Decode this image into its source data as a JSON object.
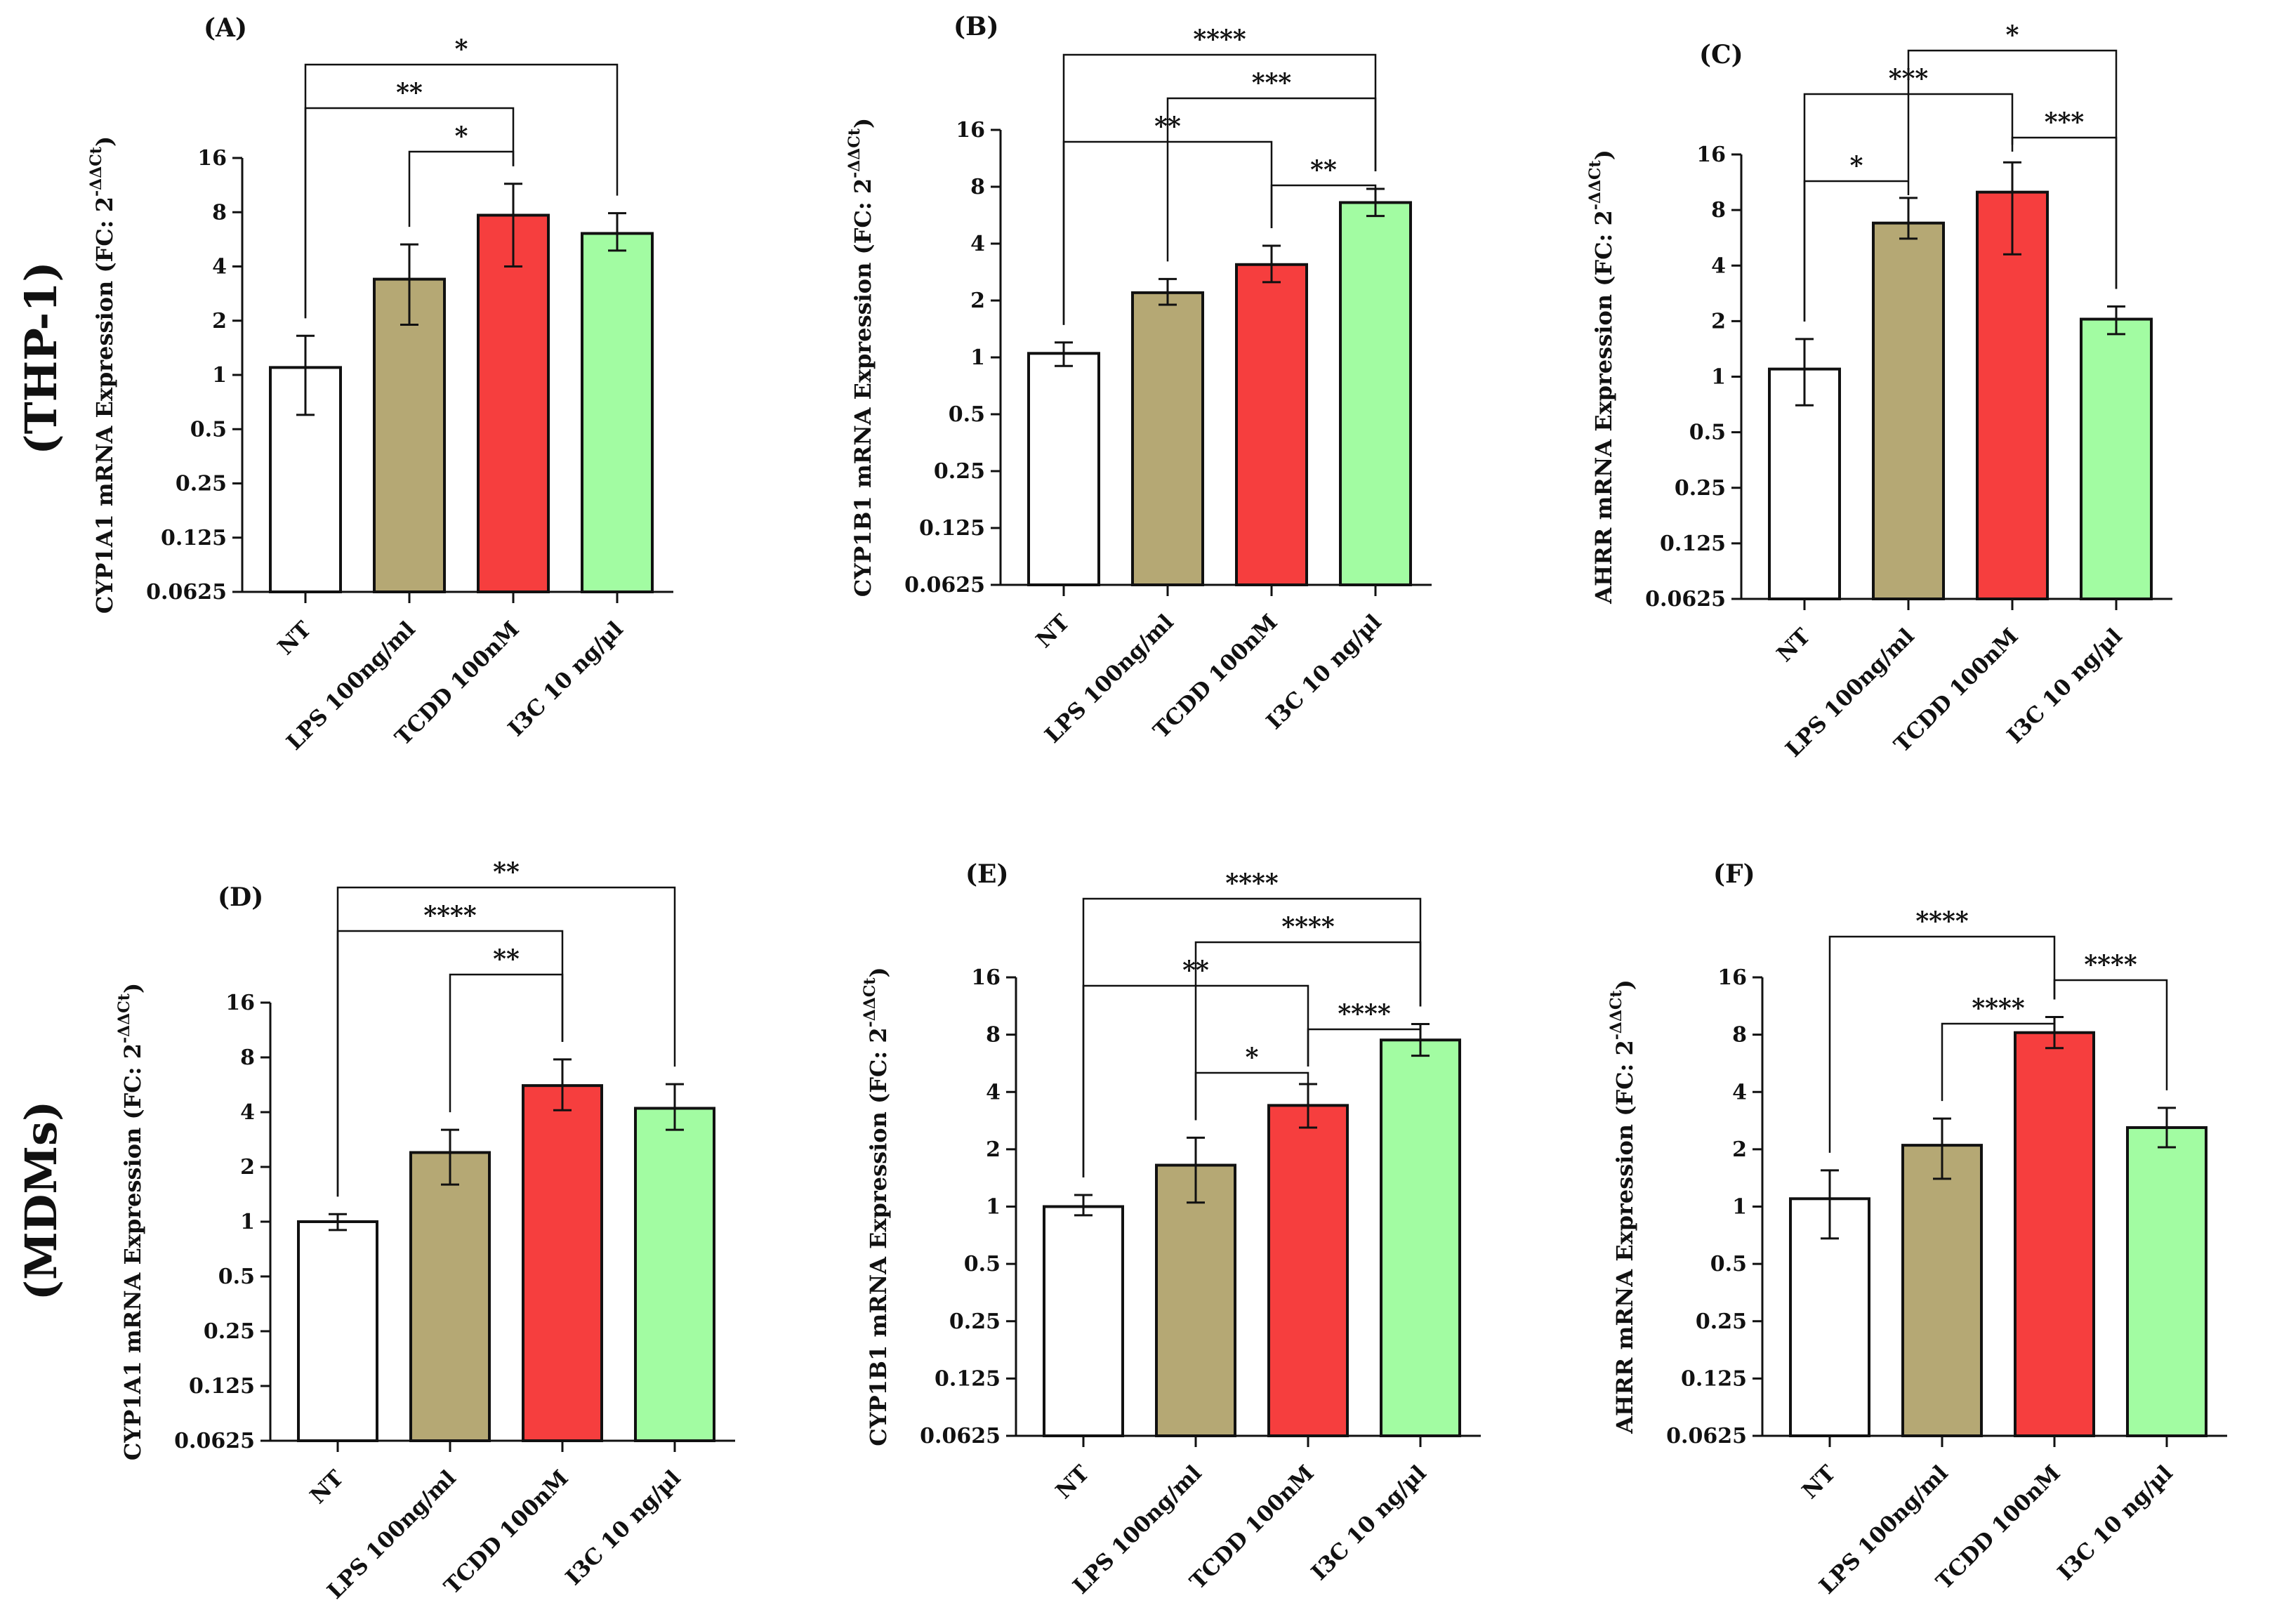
{
  "row_labels": [
    "(THP-1)",
    "(MDMs)"
  ],
  "colors": {
    "NT": "#ffffff",
    "LPS": "#b5a874",
    "TCDD": "#f63e3e",
    "I3C": "#a2fca2",
    "stroke": "#111111"
  },
  "chart_data": [
    {
      "type": "bar",
      "panel": "(A)",
      "ylabel": "CYP1A1 mRNA Expression (FC: 2^-ΔΔCt)",
      "yscale": "log2",
      "ylim": [
        0.0625,
        16
      ],
      "yticks": [
        "0.0625",
        "0.125",
        "0.25",
        "0.5",
        "1",
        "2",
        "4",
        "8",
        "16"
      ],
      "categories": [
        "NT",
        "LPS 100ng/ml",
        "TCDD 100nM",
        "I3C 10 ng/µl"
      ],
      "values": [
        1.1,
        3.4,
        7.7,
        6.1
      ],
      "err_low": [
        0.6,
        1.9,
        4.0,
        4.9
      ],
      "err_high": [
        1.65,
        5.3,
        11.5,
        7.9
      ],
      "comparisons": [
        {
          "from": 0,
          "to": 3,
          "label": "*"
        },
        {
          "from": 0,
          "to": 2,
          "label": "**"
        },
        {
          "from": 1,
          "to": 2,
          "label": "*"
        }
      ]
    },
    {
      "type": "bar",
      "panel": "(B)",
      "ylabel": "CYP1B1 mRNA Expression (FC: 2^-ΔΔCt)",
      "yscale": "log2",
      "ylim": [
        0.0625,
        16
      ],
      "yticks": [
        "0.0625",
        "0.125",
        "0.25",
        "0.5",
        "1",
        "2",
        "4",
        "8",
        "16"
      ],
      "categories": [
        "NT",
        "LPS 100ng/ml",
        "TCDD 100nM",
        "I3C 10 ng/µl"
      ],
      "values": [
        1.05,
        2.2,
        3.1,
        6.6
      ],
      "err_low": [
        0.9,
        1.9,
        2.5,
        5.6
      ],
      "err_high": [
        1.2,
        2.6,
        3.9,
        7.8
      ],
      "comparisons": [
        {
          "from": 0,
          "to": 3,
          "label": "****"
        },
        {
          "from": 1,
          "to": 3,
          "label": "***"
        },
        {
          "from": 2,
          "to": 3,
          "label": "**"
        },
        {
          "from": 0,
          "to": 2,
          "label": "**"
        }
      ]
    },
    {
      "type": "bar",
      "panel": "(C)",
      "ylabel": "AHRR mRNA Expression (FC: 2^-ΔΔCt)",
      "yscale": "log2",
      "ylim": [
        0.0625,
        16
      ],
      "yticks": [
        "0.0625",
        "0.125",
        "0.25",
        "0.5",
        "1",
        "2",
        "4",
        "8",
        "16"
      ],
      "categories": [
        "NT",
        "LPS 100ng/ml",
        "TCDD 100nM",
        "I3C 10 ng/µl"
      ],
      "values": [
        1.1,
        6.8,
        10.0,
        2.05
      ],
      "err_low": [
        0.7,
        5.6,
        4.6,
        1.7
      ],
      "err_high": [
        1.6,
        9.3,
        14.5,
        2.4
      ],
      "comparisons": [
        {
          "from": 1,
          "to": 3,
          "label": "*"
        },
        {
          "from": 0,
          "to": 2,
          "label": "***"
        },
        {
          "from": 2,
          "to": 3,
          "label": "***"
        },
        {
          "from": 0,
          "to": 1,
          "label": "*"
        }
      ]
    },
    {
      "type": "bar",
      "panel": "(D)",
      "ylabel": "CYP1A1 mRNA Expression (FC: 2^-ΔΔCt)",
      "yscale": "log2",
      "ylim": [
        0.0625,
        16
      ],
      "yticks": [
        "0.0625",
        "0.125",
        "0.25",
        "0.5",
        "1",
        "2",
        "4",
        "8",
        "16"
      ],
      "categories": [
        "NT",
        "LPS 100ng/ml",
        "TCDD 100nM",
        "I3C 10 ng/µl"
      ],
      "values": [
        1.0,
        2.4,
        5.6,
        4.2
      ],
      "err_low": [
        0.9,
        1.6,
        4.1,
        3.2
      ],
      "err_high": [
        1.1,
        3.2,
        7.8,
        5.7
      ],
      "comparisons": [
        {
          "from": 0,
          "to": 3,
          "label": "**"
        },
        {
          "from": 0,
          "to": 2,
          "label": "****"
        },
        {
          "from": 1,
          "to": 2,
          "label": "**"
        }
      ]
    },
    {
      "type": "bar",
      "panel": "(E)",
      "ylabel": "CYP1B1 mRNA Expression (FC: 2^-ΔΔCt)",
      "yscale": "log2",
      "ylim": [
        0.0625,
        16
      ],
      "yticks": [
        "0.0625",
        "0.125",
        "0.25",
        "0.5",
        "1",
        "2",
        "4",
        "8",
        "16"
      ],
      "categories": [
        "NT",
        "LPS 100ng/ml",
        "TCDD 100nM",
        "I3C 10 ng/µl"
      ],
      "values": [
        1.0,
        1.65,
        3.4,
        7.5
      ],
      "err_low": [
        0.9,
        1.05,
        2.6,
        6.2
      ],
      "err_high": [
        1.15,
        2.3,
        4.4,
        9.1
      ],
      "comparisons": [
        {
          "from": 0,
          "to": 3,
          "label": "****"
        },
        {
          "from": 1,
          "to": 3,
          "label": "****"
        },
        {
          "from": 2,
          "to": 3,
          "label": "****"
        },
        {
          "from": 0,
          "to": 2,
          "label": "**"
        },
        {
          "from": 1,
          "to": 2,
          "label": "*"
        }
      ]
    },
    {
      "type": "bar",
      "panel": "(F)",
      "ylabel": "AHRR mRNA Expression (FC: 2^-ΔΔCt)",
      "yscale": "log2",
      "ylim": [
        0.0625,
        16
      ],
      "yticks": [
        "0.0625",
        "0.125",
        "0.25",
        "0.5",
        "1",
        "2",
        "4",
        "8",
        "16"
      ],
      "categories": [
        "NT",
        "LPS 100ng/ml",
        "TCDD 100nM",
        "I3C 10 ng/µl"
      ],
      "values": [
        1.1,
        2.1,
        8.2,
        2.6
      ],
      "err_low": [
        0.68,
        1.4,
        6.8,
        2.05
      ],
      "err_high": [
        1.55,
        2.9,
        9.9,
        3.3
      ],
      "comparisons": [
        {
          "from": 0,
          "to": 2,
          "label": "****"
        },
        {
          "from": 2,
          "to": 3,
          "label": "****"
        },
        {
          "from": 1,
          "to": 2,
          "label": "****"
        }
      ]
    }
  ]
}
